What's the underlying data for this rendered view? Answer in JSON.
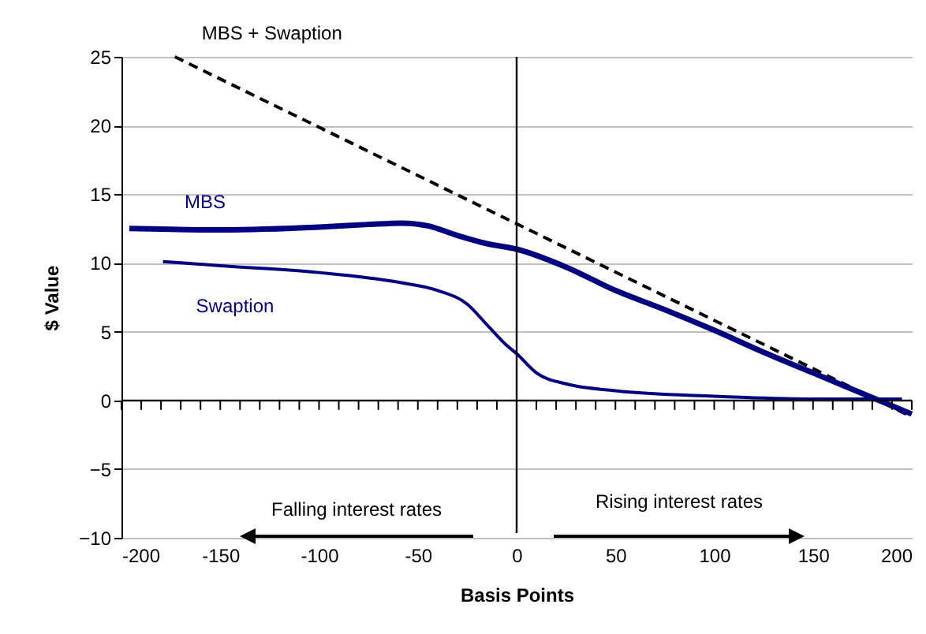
{
  "chart_data": {
    "type": "line",
    "xlabel": "Basis Points",
    "ylabel": "$ Value",
    "xlim": [
      -200,
      200
    ],
    "ylim": [
      -10,
      25
    ],
    "xticks": [
      -200,
      {
        "value": -190,
        "label": null
      },
      {
        "value": -180,
        "label": null
      },
      {
        "value": -170,
        "label": null
      },
      {
        "value": -160,
        "label": null
      },
      -150,
      {
        "value": -140,
        "label": null
      },
      {
        "value": -130,
        "label": null
      },
      {
        "value": -120,
        "label": null
      },
      {
        "value": -110,
        "label": null
      },
      -100,
      {
        "value": -90,
        "label": null
      },
      {
        "value": -80,
        "label": null
      },
      {
        "value": -70,
        "label": null
      },
      {
        "value": -60,
        "label": null
      },
      -50,
      {
        "value": -40,
        "label": null
      },
      {
        "value": -30,
        "label": null
      },
      {
        "value": -20,
        "label": null
      },
      {
        "value": -10,
        "label": null
      },
      0,
      {
        "value": 10,
        "label": null
      },
      {
        "value": 20,
        "label": null
      },
      {
        "value": 30,
        "label": null
      },
      {
        "value": 40,
        "label": null
      },
      50,
      {
        "value": 60,
        "label": null
      },
      {
        "value": 70,
        "label": null
      },
      {
        "value": 80,
        "label": null
      },
      {
        "value": 90,
        "label": null
      },
      100,
      {
        "value": 110,
        "label": null
      },
      {
        "value": 120,
        "label": null
      },
      {
        "value": 130,
        "label": null
      },
      {
        "value": 140,
        "label": null
      },
      150,
      {
        "value": 160,
        "label": null
      },
      {
        "value": 170,
        "label": null
      },
      {
        "value": 180,
        "label": null
      },
      {
        "value": 190,
        "label": null
      },
      200
    ],
    "yticks": [
      -10,
      -5,
      0,
      5,
      10,
      15,
      20,
      25
    ],
    "grid": "y",
    "marker": "none",
    "line_style": "solid",
    "series": [
      {
        "name": "MBS + Swaption",
        "color": "#000000",
        "line_style": "dashed",
        "x": [
          -173,
          200
        ],
        "values": [
          25,
          -1.2
        ]
      },
      {
        "name": "MBS",
        "color": "#000080",
        "x": [
          -196,
          -150,
          -100,
          -75,
          -58,
          -45,
          -30,
          -15,
          0,
          25,
          50,
          75,
          100,
          125,
          150,
          175,
          200
        ],
        "values": [
          12.5,
          12.4,
          12.6,
          12.8,
          12.9,
          12.7,
          12.0,
          11.4,
          11.0,
          9.7,
          8.0,
          6.6,
          5.1,
          3.5,
          2.0,
          0.5,
          -1.0
        ]
      },
      {
        "name": "Swaption",
        "color": "#000080",
        "x": [
          -179,
          -150,
          -100,
          -60,
          -40,
          -25,
          -15,
          -5,
          0,
          10,
          25,
          50,
          100,
          150,
          195
        ],
        "values": [
          10.1,
          9.8,
          9.3,
          8.6,
          8.0,
          7.0,
          5.5,
          4.0,
          3.4,
          2.0,
          1.2,
          0.7,
          0.3,
          0.1,
          0.1
        ]
      }
    ],
    "ref_lines": [
      {
        "axis": "x",
        "value": 0,
        "color": "#000000"
      }
    ],
    "annotations": [
      "Falling interest rates",
      "Rising interest rates"
    ]
  }
}
